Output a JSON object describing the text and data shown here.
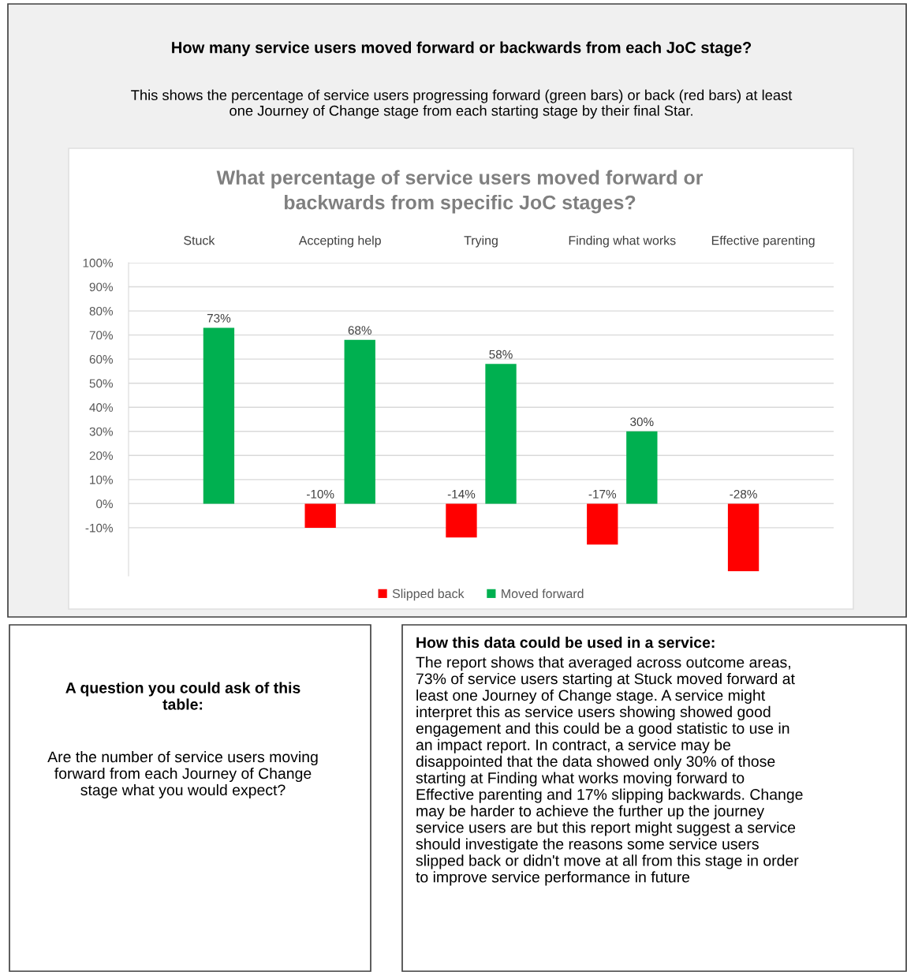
{
  "chart_data": {
    "type": "bar",
    "title": "What percentage of service users moved forward or\nbackwards from specific JoC stages?",
    "categories": [
      "Stuck",
      "Accepting help",
      "Trying",
      "Finding what works",
      "Effective parenting"
    ],
    "series": [
      {
        "name": "Slipped back",
        "color": "#ff0000",
        "values": [
          null,
          -10,
          -14,
          -17,
          -28
        ],
        "value_labels": [
          null,
          "-10%",
          "-14%",
          "-17%",
          "-28%"
        ]
      },
      {
        "name": "Moved forward",
        "color": "#00b050",
        "values": [
          73,
          68,
          58,
          30,
          null
        ],
        "value_labels": [
          "73%",
          "68%",
          "58%",
          "30%",
          null
        ]
      }
    ],
    "ylim": [
      -30,
      100
    ],
    "yticks": [
      {
        "value": -10,
        "label": "-10%"
      },
      {
        "value": 0,
        "label": "0%"
      },
      {
        "value": 10,
        "label": "10%"
      },
      {
        "value": 20,
        "label": "20%"
      },
      {
        "value": 30,
        "label": "30%"
      },
      {
        "value": 40,
        "label": "40%"
      },
      {
        "value": 50,
        "label": "50%"
      },
      {
        "value": 60,
        "label": "60%"
      },
      {
        "value": 70,
        "label": "70%"
      },
      {
        "value": 80,
        "label": "80%"
      },
      {
        "value": 90,
        "label": "90%"
      },
      {
        "value": 100,
        "label": "100%"
      }
    ],
    "grid": "y",
    "legend": "bottom",
    "annotations": [
      "How many service users moved forward or backwards from each JoC stage?",
      "This shows the percentage of service users progressing forward (green bars) or back (red bars) at least\none Journey of Change stage from each starting stage by their final Star.",
      "A question you could ask of this\ntable:",
      "Are the number of service users moving\nforward from each Journey of Change\nstage what you would expect?",
      "How this data could be used in a service:",
      "The report shows that averaged across outcome areas,\n73% of service users starting at Stuck moved forward at\nleast one Journey of Change stage. A service might\ninterpret this as service users showing showed good\nengagement and this could be a good statistic to use in\nan impact report. In contract, a service may be\ndisappointed that the data showed only 30% of those\nstarting at Finding what works moving forward to\nEffective parenting and 17% slipping backwards. Change\nmay be harder to achieve the further up the journey\nservice users are but this report might suggest a service\nshould investigate the reasons some service users\nslipped back or didn't move at all from this stage in order\nto improve service performance in future"
    ]
  }
}
